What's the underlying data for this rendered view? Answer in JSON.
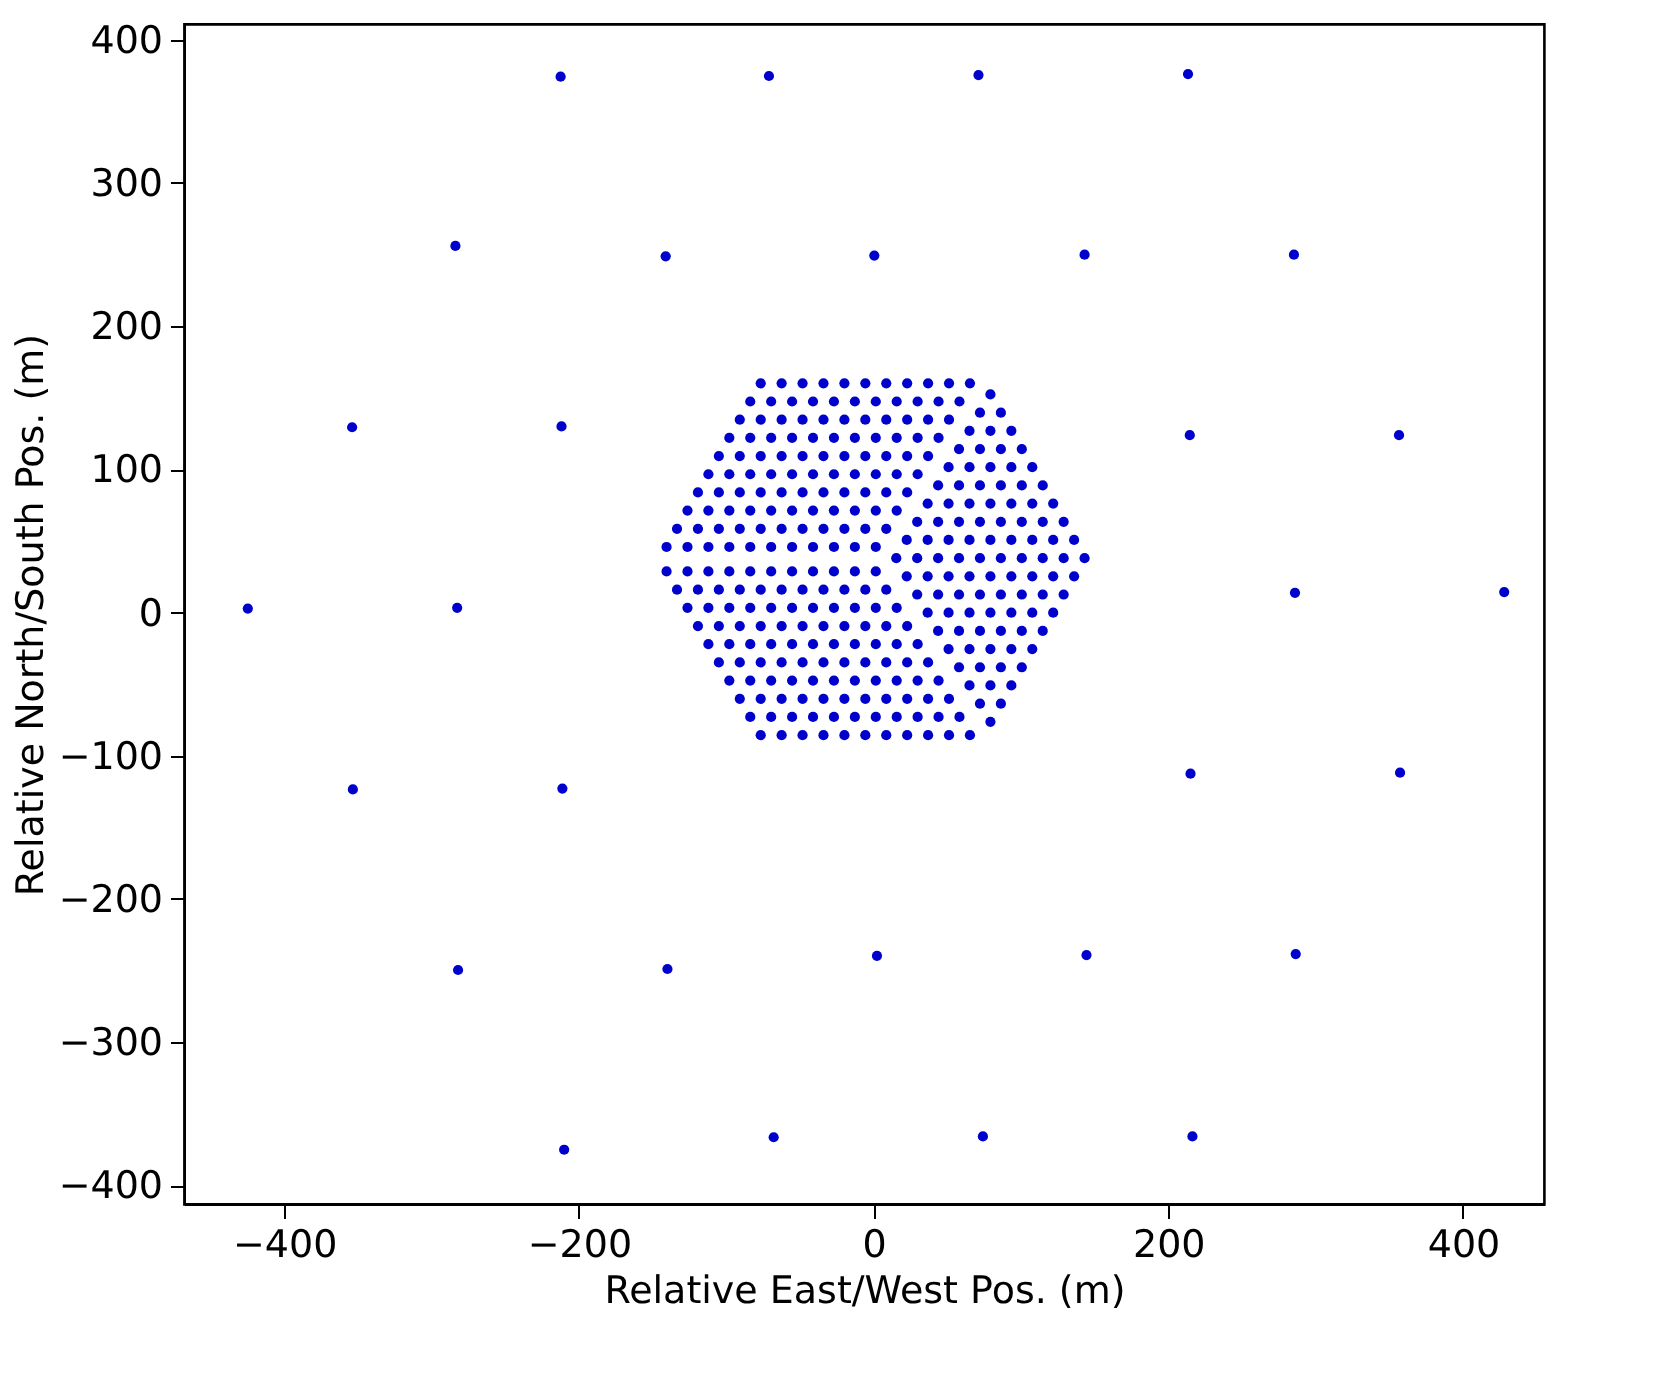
{
  "chart_data": {
    "type": "scatter",
    "xlabel": "Relative East/West Pos. (m)",
    "ylabel": "Relative North/South Pos. (m)",
    "xlim": [
      -468,
      455
    ],
    "ylim": [
      -413,
      411
    ],
    "xticks": [
      -400,
      -200,
      0,
      200,
      400
    ],
    "yticks": [
      -400,
      -300,
      -200,
      -100,
      0,
      100,
      200,
      300,
      400
    ],
    "grid": false,
    "legend": false,
    "marker": "circle",
    "series": [
      {
        "color": "#0000cd",
        "x": [
          -76.6,
          -62.4,
          -48.2,
          -34.0,
          -19.8,
          -5.6,
          8.6,
          22.8,
          37.0,
          51.2,
          65.4
        ],
        "values": [
          160.1,
          160.1,
          160.1,
          160.1,
          160.1,
          160.1,
          160.1,
          160.1,
          160.1,
          160.1,
          160.1
        ]
      },
      {
        "color": "#0000cd",
        "x": [
          -83.7,
          -69.5,
          -55.3,
          -41.1,
          -26.9,
          -12.7,
          1.5,
          15.7,
          29.9,
          44.1,
          58.3
        ],
        "values": [
          147.4,
          147.4,
          147.4,
          147.4,
          147.4,
          147.4,
          147.4,
          147.4,
          147.4,
          147.4,
          147.4
        ]
      },
      {
        "color": "#0000cd",
        "x": [
          -90.8,
          -76.6,
          -62.4,
          -48.2,
          -34.0,
          -19.8,
          -5.6,
          8.6,
          22.8,
          37.0,
          51.2
        ],
        "values": [
          134.7,
          134.7,
          134.7,
          134.7,
          134.7,
          134.7,
          134.7,
          134.7,
          134.7,
          134.7,
          134.7
        ]
      },
      {
        "color": "#0000cd",
        "x": [
          -97.9,
          -83.7,
          -69.5,
          -55.3,
          -41.1,
          -26.9,
          -12.7,
          1.5,
          15.7,
          29.9,
          44.1
        ],
        "values": [
          122.0,
          122.0,
          122.0,
          122.0,
          122.0,
          122.0,
          122.0,
          122.0,
          122.0,
          122.0,
          122.0
        ]
      },
      {
        "color": "#0000cd",
        "x": [
          -105.0,
          -90.8,
          -76.6,
          -62.4,
          -48.2,
          -34.0,
          -19.8,
          -5.6,
          8.6,
          22.8,
          37.0
        ],
        "values": [
          109.3,
          109.3,
          109.3,
          109.3,
          109.3,
          109.3,
          109.3,
          109.3,
          109.3,
          109.3,
          109.3
        ]
      },
      {
        "color": "#0000cd",
        "x": [
          -112.1,
          -97.9,
          -83.7,
          -69.5,
          -55.3,
          -41.1,
          -26.9,
          -12.7,
          1.5,
          15.7,
          29.9
        ],
        "values": [
          96.6,
          96.6,
          96.6,
          96.6,
          96.6,
          96.6,
          96.6,
          96.6,
          96.6,
          96.6,
          96.6
        ]
      },
      {
        "color": "#0000cd",
        "x": [
          -119.2,
          -105.0,
          -90.8,
          -76.6,
          -62.4,
          -48.2,
          -34.0,
          -19.8,
          -5.6,
          8.6,
          22.8
        ],
        "values": [
          83.9,
          83.9,
          83.9,
          83.9,
          83.9,
          83.9,
          83.9,
          83.9,
          83.9,
          83.9,
          83.9
        ]
      },
      {
        "color": "#0000cd",
        "x": [
          -126.3,
          -112.1,
          -97.9,
          -83.7,
          -69.5,
          -55.3,
          -41.1,
          -26.9,
          -12.7,
          1.5,
          15.7
        ],
        "values": [
          71.2,
          71.2,
          71.2,
          71.2,
          71.2,
          71.2,
          71.2,
          71.2,
          71.2,
          71.2,
          71.2
        ]
      },
      {
        "color": "#0000cd",
        "x": [
          -133.4,
          -119.2,
          -105.0,
          -90.8,
          -76.6,
          -62.4,
          -48.2,
          -34.0,
          -19.8,
          -5.6,
          8.6
        ],
        "values": [
          58.5,
          58.5,
          58.5,
          58.5,
          58.5,
          58.5,
          58.5,
          58.5,
          58.5,
          58.5,
          58.5
        ]
      },
      {
        "color": "#0000cd",
        "x": [
          -140.5,
          -126.3,
          -112.1,
          -97.9,
          -83.7,
          -69.5,
          -55.3,
          -41.1,
          -26.9,
          -12.7,
          1.5
        ],
        "values": [
          45.8,
          45.8,
          45.8,
          45.8,
          45.8,
          45.8,
          45.8,
          45.8,
          45.8,
          45.8,
          45.8
        ]
      },
      {
        "color": "#0000cd",
        "x": [
          -140.5,
          -126.3,
          -112.1,
          -97.9,
          -83.7,
          -69.5,
          -55.3,
          -41.1,
          -26.9,
          -12.7,
          1.5
        ],
        "values": [
          28.7,
          28.7,
          28.7,
          28.7,
          28.7,
          28.7,
          28.7,
          28.7,
          28.7,
          28.7,
          28.7
        ]
      },
      {
        "color": "#0000cd",
        "x": [
          -133.4,
          -119.2,
          -105.0,
          -90.8,
          -76.6,
          -62.4,
          -48.2,
          -34.0,
          -19.8,
          -5.6,
          8.6
        ],
        "values": [
          16.0,
          16.0,
          16.0,
          16.0,
          16.0,
          16.0,
          16.0,
          16.0,
          16.0,
          16.0,
          16.0
        ]
      },
      {
        "color": "#0000cd",
        "x": [
          -126.3,
          -112.1,
          -97.9,
          -83.7,
          -69.5,
          -55.3,
          -41.1,
          -26.9,
          -12.7,
          1.5,
          15.7
        ],
        "values": [
          3.3,
          3.3,
          3.3,
          3.3,
          3.3,
          3.3,
          3.3,
          3.3,
          3.3,
          3.3,
          3.3
        ]
      },
      {
        "color": "#0000cd",
        "x": [
          -119.2,
          -105.0,
          -90.8,
          -76.6,
          -62.4,
          -48.2,
          -34.0,
          -19.8,
          -5.6,
          8.6,
          22.8
        ],
        "values": [
          -9.4,
          -9.4,
          -9.4,
          -9.4,
          -9.4,
          -9.4,
          -9.4,
          -9.4,
          -9.4,
          -9.4,
          -9.4
        ]
      },
      {
        "color": "#0000cd",
        "x": [
          -112.1,
          -97.9,
          -83.7,
          -69.5,
          -55.3,
          -41.1,
          -26.9,
          -12.7,
          1.5,
          15.7,
          29.9
        ],
        "values": [
          -22.1,
          -22.1,
          -22.1,
          -22.1,
          -22.1,
          -22.1,
          -22.1,
          -22.1,
          -22.1,
          -22.1,
          -22.1
        ]
      },
      {
        "color": "#0000cd",
        "x": [
          -105.0,
          -90.8,
          -76.6,
          -62.4,
          -48.2,
          -34.0,
          -19.8,
          -5.6,
          8.6,
          22.8,
          37.0
        ],
        "values": [
          -34.8,
          -34.8,
          -34.8,
          -34.8,
          -34.8,
          -34.8,
          -34.8,
          -34.8,
          -34.8,
          -34.8,
          -34.8
        ]
      },
      {
        "color": "#0000cd",
        "x": [
          -97.9,
          -83.7,
          -69.5,
          -55.3,
          -41.1,
          -26.9,
          -12.7,
          1.5,
          15.7,
          29.9,
          44.1
        ],
        "values": [
          -47.5,
          -47.5,
          -47.5,
          -47.5,
          -47.5,
          -47.5,
          -47.5,
          -47.5,
          -47.5,
          -47.5,
          -47.5
        ]
      },
      {
        "color": "#0000cd",
        "x": [
          -90.8,
          -76.6,
          -62.4,
          -48.2,
          -34.0,
          -19.8,
          -5.6,
          8.6,
          22.8,
          37.0,
          51.2
        ],
        "values": [
          -60.2,
          -60.2,
          -60.2,
          -60.2,
          -60.2,
          -60.2,
          -60.2,
          -60.2,
          -60.2,
          -60.2,
          -60.2
        ]
      },
      {
        "color": "#0000cd",
        "x": [
          -83.7,
          -69.5,
          -55.3,
          -41.1,
          -26.9,
          -12.7,
          1.5,
          15.7,
          29.9,
          44.1,
          58.3
        ],
        "values": [
          -72.9,
          -72.9,
          -72.9,
          -72.9,
          -72.9,
          -72.9,
          -72.9,
          -72.9,
          -72.9,
          -72.9,
          -72.9
        ]
      },
      {
        "color": "#0000cd",
        "x": [
          -76.6,
          -62.4,
          -48.2,
          -34.0,
          -19.8,
          -5.6,
          8.6,
          22.8,
          37.0,
          51.2,
          65.4
        ],
        "values": [
          -85.6,
          -85.6,
          -85.6,
          -85.6,
          -85.6,
          -85.6,
          -85.6,
          -85.6,
          -85.6,
          -85.6,
          -85.6
        ]
      },
      {
        "color": "#0000cd",
        "x": [
          79.3
        ],
        "values": [
          152.3
        ]
      },
      {
        "color": "#0000cd",
        "x": [
          72.2,
          86.4
        ],
        "values": [
          139.6,
          139.6
        ]
      },
      {
        "color": "#0000cd",
        "x": [
          65.1,
          79.3,
          93.5
        ],
        "values": [
          126.9,
          126.9,
          126.9
        ]
      },
      {
        "color": "#0000cd",
        "x": [
          58.0,
          72.2,
          86.4,
          100.6
        ],
        "values": [
          114.2,
          114.2,
          114.2,
          114.2
        ]
      },
      {
        "color": "#0000cd",
        "x": [
          50.9,
          65.1,
          79.3,
          93.5,
          107.7
        ],
        "values": [
          101.5,
          101.5,
          101.5,
          101.5,
          101.5
        ]
      },
      {
        "color": "#0000cd",
        "x": [
          43.8,
          58.0,
          72.2,
          86.4,
          100.6,
          114.8
        ],
        "values": [
          88.8,
          88.8,
          88.8,
          88.8,
          88.8,
          88.8
        ]
      },
      {
        "color": "#0000cd",
        "x": [
          36.7,
          50.9,
          65.1,
          79.3,
          93.5,
          107.7,
          121.9
        ],
        "values": [
          76.1,
          76.1,
          76.1,
          76.1,
          76.1,
          76.1,
          76.1
        ]
      },
      {
        "color": "#0000cd",
        "x": [
          29.6,
          43.8,
          58.0,
          72.2,
          86.4,
          100.6,
          114.8,
          129.0
        ],
        "values": [
          63.4,
          63.4,
          63.4,
          63.4,
          63.4,
          63.4,
          63.4,
          63.4
        ]
      },
      {
        "color": "#0000cd",
        "x": [
          22.5,
          36.7,
          50.9,
          65.1,
          79.3,
          93.5,
          107.7,
          121.9,
          136.1
        ],
        "values": [
          50.7,
          50.7,
          50.7,
          50.7,
          50.7,
          50.7,
          50.7,
          50.7,
          50.7
        ]
      },
      {
        "color": "#0000cd",
        "x": [
          15.4,
          29.6,
          43.8,
          58.0,
          72.2,
          86.4,
          100.6,
          114.8,
          129.0,
          143.2
        ],
        "values": [
          38.0,
          38.0,
          38.0,
          38.0,
          38.0,
          38.0,
          38.0,
          38.0,
          38.0,
          38.0
        ]
      },
      {
        "color": "#0000cd",
        "x": [
          22.5,
          36.7,
          50.9,
          65.1,
          79.3,
          93.5,
          107.7,
          121.9,
          136.1
        ],
        "values": [
          25.3,
          25.3,
          25.3,
          25.3,
          25.3,
          25.3,
          25.3,
          25.3,
          25.3
        ]
      },
      {
        "color": "#0000cd",
        "x": [
          29.6,
          43.8,
          58.0,
          72.2,
          86.4,
          100.6,
          114.8,
          129.0
        ],
        "values": [
          12.6,
          12.6,
          12.6,
          12.6,
          12.6,
          12.6,
          12.6,
          12.6
        ]
      },
      {
        "color": "#0000cd",
        "x": [
          36.7,
          50.9,
          65.1,
          79.3,
          93.5,
          107.7,
          121.9
        ],
        "values": [
          -0.1,
          -0.1,
          -0.1,
          -0.1,
          -0.1,
          -0.1,
          -0.1
        ]
      },
      {
        "color": "#0000cd",
        "x": [
          43.8,
          58.0,
          72.2,
          86.4,
          100.6,
          114.8
        ],
        "values": [
          -12.8,
          -12.8,
          -12.8,
          -12.8,
          -12.8,
          -12.8
        ]
      },
      {
        "color": "#0000cd",
        "x": [
          50.9,
          65.1,
          79.3,
          93.5,
          107.7
        ],
        "values": [
          -25.5,
          -25.5,
          -25.5,
          -25.5,
          -25.5
        ]
      },
      {
        "color": "#0000cd",
        "x": [
          58.0,
          72.2,
          86.4,
          100.6
        ],
        "values": [
          -38.2,
          -38.2,
          -38.2,
          -38.2
        ]
      },
      {
        "color": "#0000cd",
        "x": [
          65.1,
          79.3,
          93.5
        ],
        "values": [
          -50.9,
          -50.9,
          -50.9
        ]
      },
      {
        "color": "#0000cd",
        "x": [
          72.2,
          86.4
        ],
        "values": [
          -63.6,
          -63.6
        ]
      },
      {
        "color": "#0000cd",
        "x": [
          79.3
        ],
        "values": [
          -76.3
        ]
      },
      {
        "color": "#0000cd",
        "x": [
          -212.4,
          -71.0,
          71.2,
          213.4
        ],
        "values": [
          374.2,
          374.7,
          375.3,
          376.0
        ]
      },
      {
        "color": "#0000cd",
        "x": [
          -283.8,
          -141.1,
          0.5,
          143.2,
          285.3
        ],
        "values": [
          256.0,
          248.8,
          249.3,
          249.9,
          249.9
        ]
      },
      {
        "color": "#0000cd",
        "x": [
          -353.9,
          -211.8,
          214.6,
          356.6
        ],
        "values": [
          129.4,
          130.0,
          123.9,
          123.9
        ]
      },
      {
        "color": "#0000cd",
        "x": [
          -424.7,
          -282.6,
          286.0,
          428.0
        ],
        "values": [
          2.8,
          3.3,
          13.8,
          14.3
        ]
      },
      {
        "color": "#0000cd",
        "x": [
          -353.4,
          -211.2,
          215.1,
          357.3
        ],
        "values": [
          -123.5,
          -122.9,
          -112.5,
          -111.8
        ]
      },
      {
        "color": "#0000cd",
        "x": [
          -282.0,
          -139.9,
          2.3,
          144.5,
          286.5
        ],
        "values": [
          -249.6,
          -248.9,
          -239.7,
          -239.2,
          -238.5
        ]
      },
      {
        "color": "#0000cd",
        "x": [
          -210.0,
          -67.8,
          74.2,
          216.4
        ],
        "values": [
          -375.1,
          -366.4,
          -365.8,
          -365.8
        ]
      }
    ]
  }
}
